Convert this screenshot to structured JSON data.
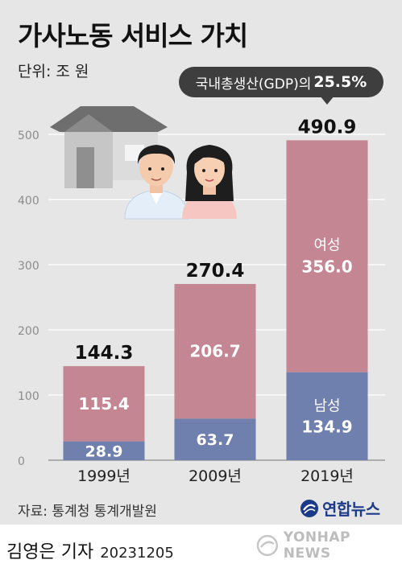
{
  "title": "가사노동 서비스 가치",
  "unit_label": "단위: 조 원",
  "callout": {
    "prefix": "국내총생산(GDP)의",
    "value": "25.5%"
  },
  "source": "자료: 통계청 통계개발원",
  "agency_logo": "연합뉴스",
  "byline": {
    "author": "김영은 기자",
    "date": "20231205"
  },
  "watermark": "YONHAP NEWS",
  "colors": {
    "female": "#c48693",
    "male": "#6f7fae",
    "background": "#e6e6e6"
  },
  "chart_data": {
    "type": "bar",
    "stacked": true,
    "categories": [
      "1999년",
      "2009년",
      "2019년"
    ],
    "series": [
      {
        "name": "남성",
        "values": [
          28.9,
          63.7,
          134.9
        ],
        "labels": [
          "28.9",
          "63.7",
          "134.9"
        ]
      },
      {
        "name": "여성",
        "values": [
          115.4,
          206.7,
          356.0
        ],
        "labels": [
          "115.4",
          "206.7",
          "356.0"
        ]
      }
    ],
    "totals": [
      144.3,
      270.4,
      490.9
    ],
    "total_labels": [
      "144.3",
      "270.4",
      "490.9"
    ],
    "ylim": [
      0,
      500
    ],
    "yticks": [
      0,
      100,
      200,
      300,
      400,
      500
    ],
    "grid": true,
    "legend": "inline-labels"
  }
}
